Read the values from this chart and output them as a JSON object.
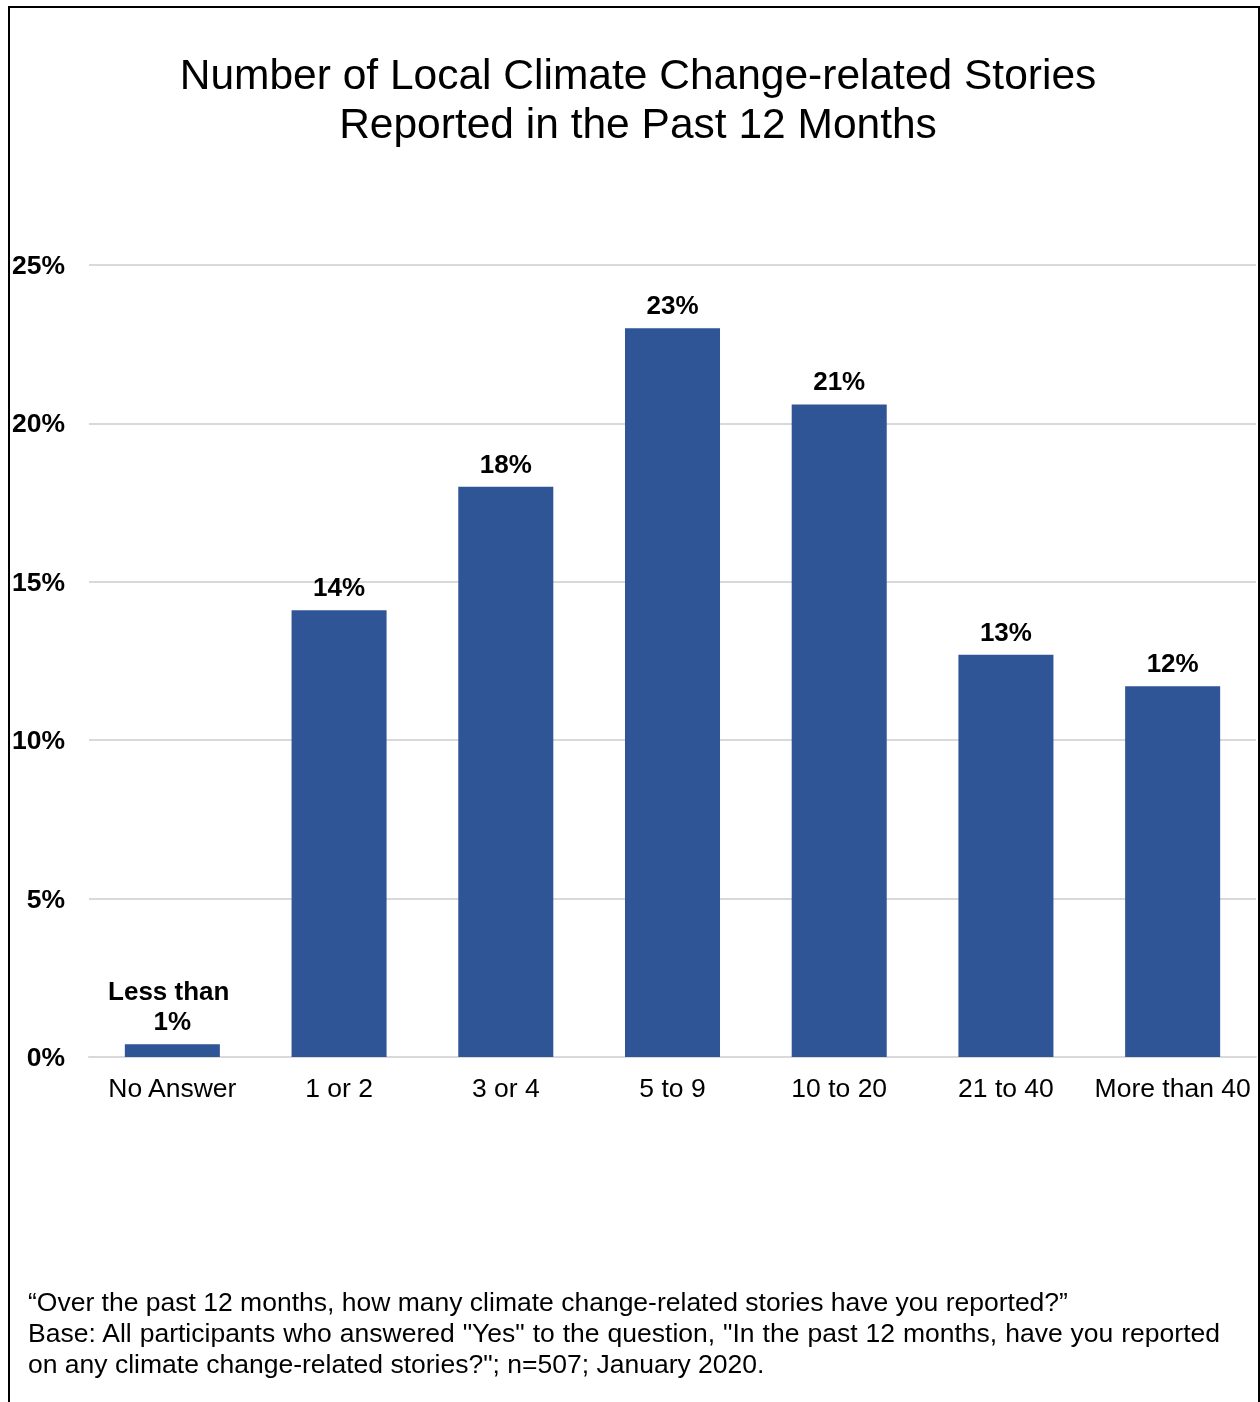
{
  "chart_data": {
    "type": "bar",
    "title": "Number of Local Climate Change-related Stories Reported in the Past 12 Months",
    "categories": [
      "No Answer",
      "1 or 2",
      "3 or 4",
      "5 to 9",
      "10 to 20",
      "21 to 40",
      "More than 40"
    ],
    "values": [
      0.4,
      14.1,
      18,
      23,
      20.6,
      12.7,
      11.7
    ],
    "value_labels": [
      "Less than 1%",
      "14%",
      "18%",
      "23%",
      "21%",
      "13%",
      "12%"
    ],
    "color": "#2f5597",
    "ylim": [
      0,
      25
    ],
    "yticks": [
      {
        "value": 0,
        "label": "0%"
      },
      {
        "value": 5,
        "label": "5%"
      },
      {
        "value": 10,
        "label": "10%"
      },
      {
        "value": 15,
        "label": "15%"
      },
      {
        "value": 20,
        "label": "20%"
      },
      {
        "value": 25,
        "label": "25%"
      }
    ],
    "grid": "y",
    "annotations": [
      "“Over the past 12 months, how many climate change-related stories have you reported?”",
      "Base: All participants who answered \"Yes\" to the question, \"In the past 12 months, have you reported on any climate change-related stories?\"; n=507; January 2020."
    ]
  }
}
